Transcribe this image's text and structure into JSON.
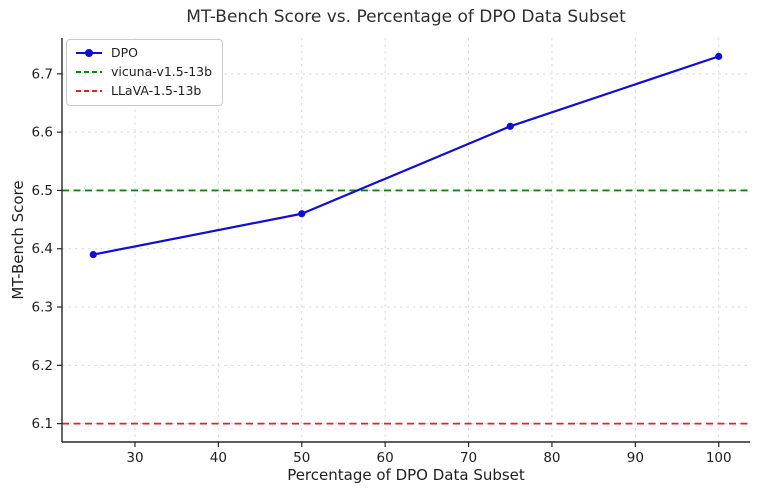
{
  "chart_data": {
    "type": "line",
    "title": "MT-Bench Score vs. Percentage of DPO Data Subset",
    "xlabel": "Percentage of DPO Data Subset",
    "ylabel": "MT-Bench Score",
    "xlim": [
      21.25,
      103.75
    ],
    "ylim": [
      6.0685,
      6.7615
    ],
    "x_ticks": [
      30,
      40,
      50,
      60,
      70,
      80,
      90,
      100
    ],
    "x_tick_labels": [
      "30",
      "40",
      "50",
      "60",
      "70",
      "80",
      "90",
      "100"
    ],
    "y_ticks": [
      6.1,
      6.2,
      6.3,
      6.4,
      6.5,
      6.6,
      6.7
    ],
    "y_tick_labels": [
      "6.1",
      "6.2",
      "6.3",
      "6.4",
      "6.5",
      "6.6",
      "6.7"
    ],
    "grid": true,
    "grid_style": "dashed",
    "grid_color": "#d9d9d9",
    "spine_color": "#262626",
    "text_color": "#1f1f1f",
    "series": [
      {
        "name": "DPO",
        "x": [
          25,
          50,
          75,
          100
        ],
        "y": [
          6.39,
          6.46,
          6.61,
          6.73
        ],
        "color": "#0d0ddd",
        "linestyle": "solid",
        "marker": "circle"
      }
    ],
    "reference_lines": [
      {
        "name": "vicuna-v1.5-13b",
        "y": 6.5,
        "color": "#0a8a0a",
        "linestyle": "dashed"
      },
      {
        "name": "LLaVA-1.5-13b",
        "y": 6.1,
        "color": "#e42222",
        "linestyle": "dashed"
      }
    ],
    "legend": {
      "position": "upper left",
      "entries": [
        {
          "label": "DPO",
          "color": "#0d0ddd",
          "style": "solid-marker"
        },
        {
          "label": "vicuna-v1.5-13b",
          "color": "#0a8a0a",
          "style": "dashed"
        },
        {
          "label": "LLaVA-1.5-13b",
          "color": "#e42222",
          "style": "dashed"
        }
      ]
    }
  }
}
